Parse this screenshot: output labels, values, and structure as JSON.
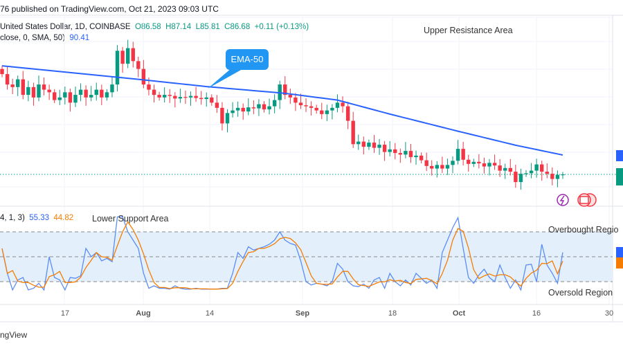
{
  "header": {
    "published": "76 published on TradingView.com, Oct 21, 2023 09:03 UTC"
  },
  "legend": {
    "symbol": "United States Dollar, 1D, COINBASE",
    "open": "O86.58",
    "high": "H87.14",
    "low": "L85.81",
    "close": "C86.68",
    "change": "+0.11 (+0.13%)",
    "ma_label": "close, 0, SMA, 50)",
    "ma_value": "90.41",
    "stoch_label": "4, 1, 3)",
    "stoch_k": "55.33",
    "stoch_d": "44.82"
  },
  "annotations": {
    "upper": "Upper Resistance Area",
    "lower": "Lower Support Area",
    "overbought": "Overbought Regio",
    "oversold": "Oversold Region",
    "callout": "EMA-50"
  },
  "time_axis": [
    "17",
    "Aug",
    "14",
    "Sep",
    "18",
    "Oct",
    "16",
    "30"
  ],
  "footer": {
    "brand": "ngView"
  },
  "colors": {
    "up": "#089981",
    "down": "#f23645",
    "ma": "#2962ff",
    "k": "#5b8cf5",
    "d": "#f57c00",
    "band": "#e3f0fc",
    "callout": "#2196f3"
  },
  "chart_data": {
    "type": "candlestick",
    "start_date": "Jul 6",
    "end_date": "Oct 21",
    "closes": [
      106,
      104,
      103.5,
      105,
      102,
      103.5,
      101.5,
      104,
      103,
      102.5,
      101,
      101.5,
      102.5,
      100.5,
      102,
      103,
      101.5,
      102,
      103,
      101.5,
      102.5,
      104,
      110.5,
      108,
      111,
      108.5,
      107,
      104,
      103,
      102,
      101.5,
      102,
      101.8,
      101.3,
      101.6,
      101.5,
      101.8,
      101.4,
      101.2,
      101.5,
      100.5,
      99.5,
      96.5,
      98.5,
      99,
      99.5,
      98.8,
      99.6,
      99.4,
      100.2,
      99.2,
      99.8,
      101,
      104,
      102,
      101.5,
      100.5,
      100,
      99.8,
      99.5,
      99,
      98.3,
      99,
      99.5,
      100.5,
      99.8,
      97,
      92.5,
      93,
      92,
      92.8,
      91.8,
      92.4,
      91,
      91.5,
      90.8,
      90.5,
      91.2,
      90,
      90.3,
      89.4,
      88.3,
      87.8,
      88.5,
      87.8,
      88.5,
      89.3,
      91.6,
      89.5,
      88.7,
      89.1,
      88.8,
      88.2,
      88.9,
      88.4,
      87.4,
      87.9,
      87.2,
      85.2,
      86.8,
      86.9,
      87.4,
      88.6,
      87.2,
      86.8,
      85.8,
      86.6,
      86.68
    ],
    "last": {
      "open": 86.58,
      "high": 87.14,
      "low": 85.81,
      "close": 86.68
    },
    "sma50": [
      {
        "date": "Jul 6",
        "value": 107.6
      },
      {
        "date": "Aug 1",
        "value": 105
      },
      {
        "date": "Aug 14",
        "value": 103.6
      },
      {
        "date": "Aug 29",
        "value": 102.3
      },
      {
        "date": "Sep 8",
        "value": 101
      },
      {
        "date": "Sep 18",
        "value": 98.3
      },
      {
        "date": "Oct 1",
        "value": 95
      },
      {
        "date": "Oct 12",
        "value": 92.3
      },
      {
        "date": "Oct 21",
        "value": 90.41
      }
    ],
    "stoch_k": [
      60,
      30,
      10,
      22,
      25,
      10,
      12,
      18,
      10,
      50,
      25,
      22,
      10,
      25,
      24,
      27,
      60,
      50,
      55,
      45,
      48,
      44,
      98,
      98,
      80,
      70,
      60,
      30,
      12,
      15,
      12,
      12,
      11,
      15,
      12,
      11,
      11,
      12,
      11,
      11,
      11,
      11,
      12,
      12,
      30,
      55,
      48,
      62,
      58,
      60,
      62,
      65,
      70,
      80,
      70,
      66,
      64,
      45,
      20,
      16,
      18,
      17,
      15,
      20,
      42,
      35,
      20,
      15,
      14,
      17,
      12,
      22,
      25,
      12,
      30,
      20,
      15,
      22,
      16,
      30,
      24,
      18,
      22,
      12,
      55,
      70,
      85,
      97,
      60,
      25,
      18,
      28,
      35,
      25,
      20,
      40,
      25,
      12,
      22,
      10,
      40,
      41,
      20,
      65,
      40,
      30,
      18,
      55.33
    ],
    "stoch_d_last": 44.82,
    "stoch_levels": [
      20,
      50,
      80
    ]
  }
}
